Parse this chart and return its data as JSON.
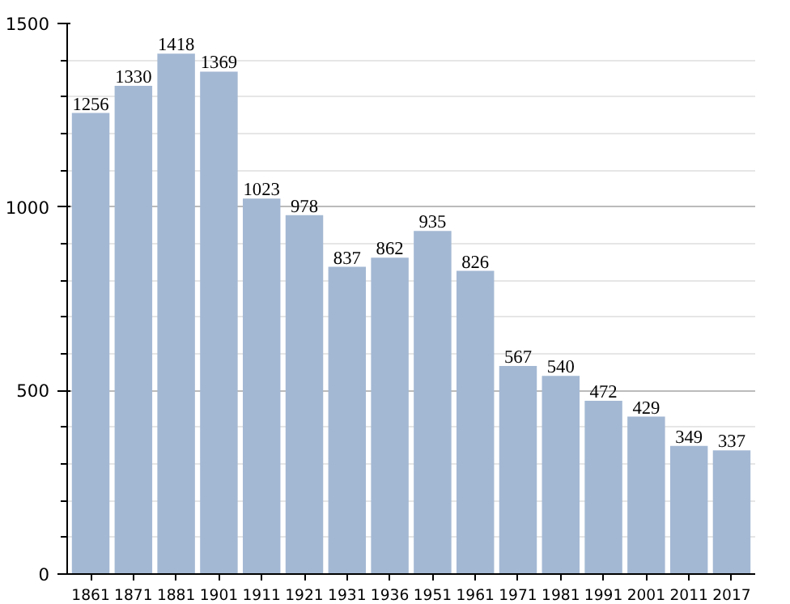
{
  "chart_data": {
    "type": "bar",
    "categories": [
      "1861",
      "1871",
      "1881",
      "1901",
      "1911",
      "1921",
      "1931",
      "1936",
      "1951",
      "1961",
      "1971",
      "1981",
      "1991",
      "2001",
      "2011",
      "2017"
    ],
    "values": [
      1256,
      1330,
      1418,
      1369,
      1023,
      978,
      837,
      862,
      935,
      826,
      567,
      540,
      472,
      429,
      349,
      337
    ],
    "color": "#a3b8d3",
    "ylim": [
      0,
      1500
    ],
    "yticks": [
      0,
      500,
      1000,
      1500
    ],
    "grid": "y",
    "data_labels": true
  }
}
